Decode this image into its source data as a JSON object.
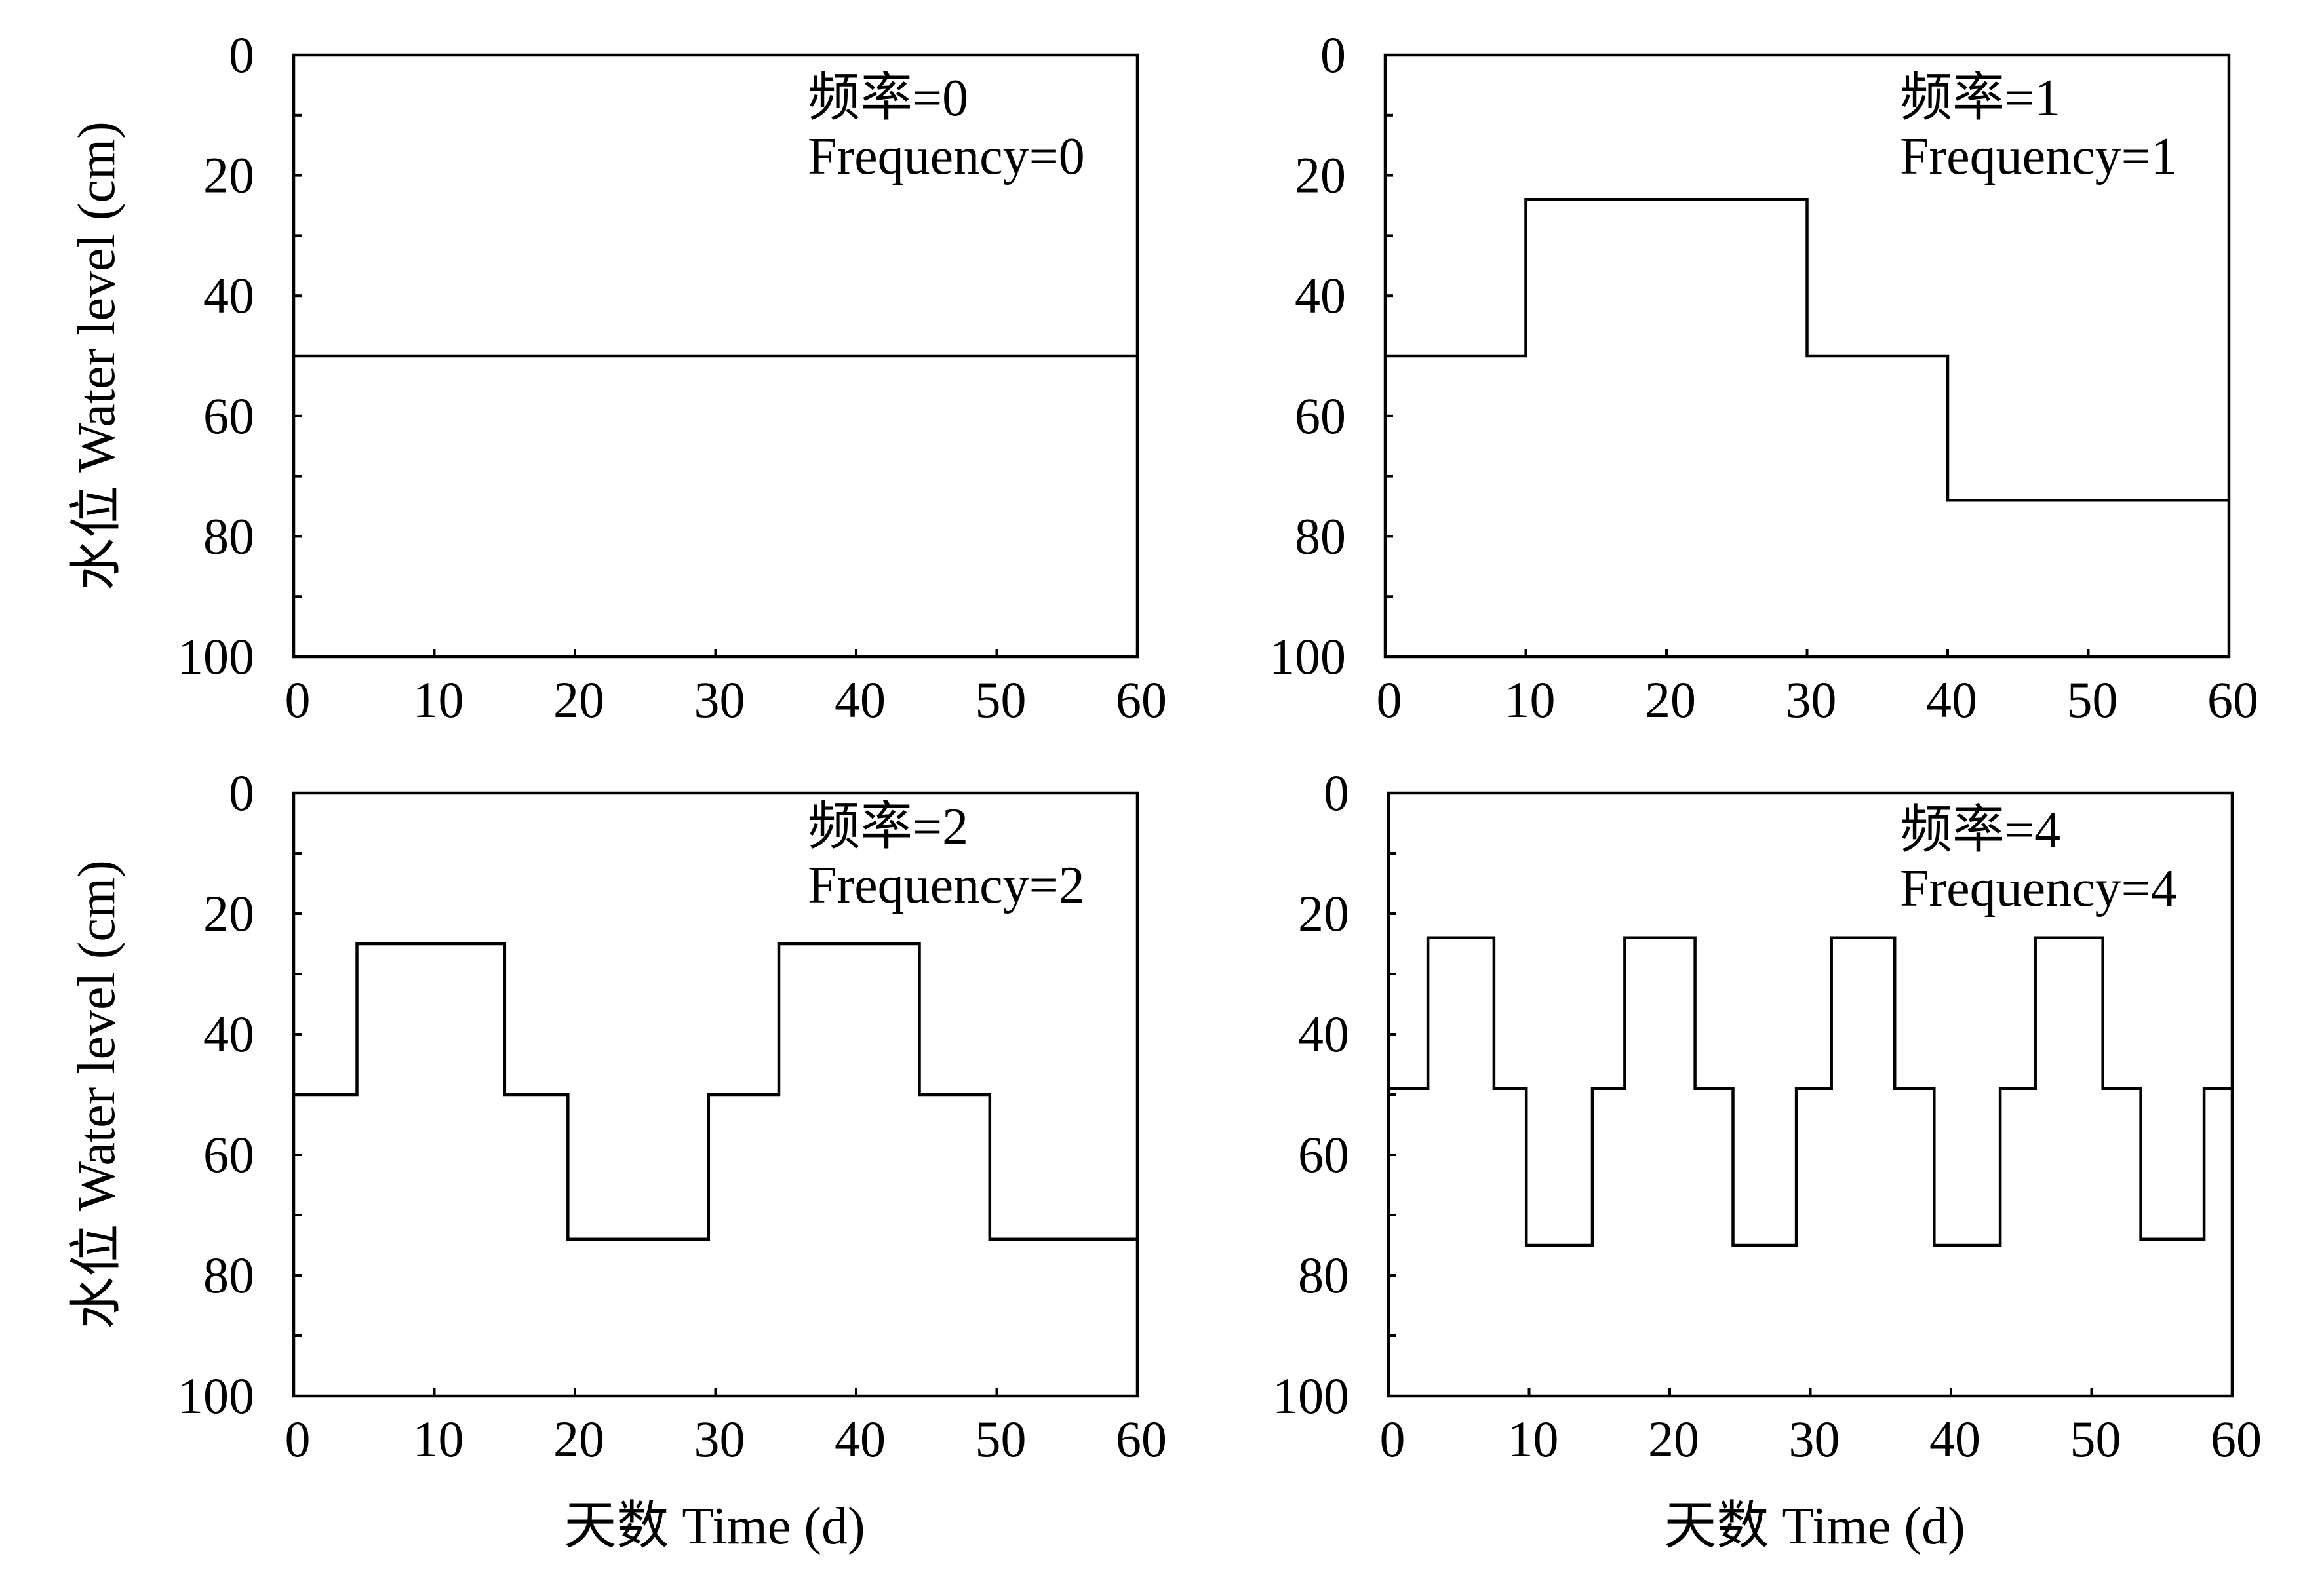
{
  "chart_data": [
    {
      "type": "line",
      "legend": [
        "频率=0",
        "Frequency=0"
      ],
      "legend_placement": "top-right",
      "ylabel": "水位 Water level (cm)",
      "xlabel": "",
      "xlim": [
        0,
        60
      ],
      "ylim": [
        0,
        100
      ],
      "y_inverted": true,
      "x_ticks": [
        "0",
        "10",
        "20",
        "30",
        "40",
        "50",
        "60"
      ],
      "y_ticks": [
        "0",
        "20",
        "40",
        "60",
        "80",
        "100"
      ],
      "grid": false,
      "series": [
        {
          "x": [
            0,
            60
          ],
          "y": [
            50,
            50
          ]
        }
      ]
    },
    {
      "type": "line",
      "legend": [
        "频率=1",
        "Frequency=1"
      ],
      "legend_placement": "top-right",
      "ylabel": "",
      "xlabel": "",
      "xlim": [
        0,
        60
      ],
      "ylim": [
        0,
        100
      ],
      "y_inverted": true,
      "x_ticks": [
        "0",
        "10",
        "20",
        "30",
        "40",
        "50",
        "60"
      ],
      "y_ticks": [
        "0",
        "20",
        "40",
        "60",
        "80",
        "100"
      ],
      "grid": false,
      "series": [
        {
          "x": [
            0,
            10,
            10,
            30,
            30,
            40,
            40,
            60
          ],
          "y": [
            50,
            50,
            24,
            24,
            50,
            50,
            74,
            74
          ]
        }
      ]
    },
    {
      "type": "line",
      "legend": [
        "频率=2",
        "Frequency=2"
      ],
      "legend_placement": "top-right",
      "ylabel": "水位 Water level (cm)",
      "xlabel": "天数 Time (d)",
      "xlim": [
        0,
        60
      ],
      "ylim": [
        0,
        100
      ],
      "y_inverted": true,
      "x_ticks": [
        "0",
        "10",
        "20",
        "30",
        "40",
        "50",
        "60"
      ],
      "y_ticks": [
        "0",
        "20",
        "40",
        "60",
        "80",
        "100"
      ],
      "grid": false,
      "series": [
        {
          "x": [
            0,
            4.5,
            4.5,
            15,
            15,
            19.5,
            19.5,
            29.5,
            29.5,
            34.5,
            34.5,
            44.5,
            44.5,
            49.5,
            49.5,
            60
          ],
          "y": [
            50,
            50,
            25,
            25,
            50,
            50,
            74,
            74,
            50,
            50,
            25,
            25,
            50,
            50,
            74,
            74
          ]
        }
      ]
    },
    {
      "type": "line",
      "legend": [
        "频率=4",
        "Frequency=4"
      ],
      "legend_placement": "top-right",
      "ylabel": "",
      "xlabel": "天数 Time (d)",
      "xlim": [
        0,
        60
      ],
      "ylim": [
        0,
        100
      ],
      "y_inverted": true,
      "x_ticks": [
        "0",
        "10",
        "20",
        "30",
        "40",
        "50",
        "60"
      ],
      "y_ticks": [
        "0",
        "20",
        "40",
        "60",
        "80",
        "100"
      ],
      "grid": false,
      "series": [
        {
          "x": [
            0,
            2.8,
            2.8,
            7.5,
            7.5,
            9.8,
            9.8,
            14.5,
            14.5,
            16.8,
            16.8,
            21.8,
            21.8,
            24.5,
            24.5,
            29,
            29,
            31.5,
            31.5,
            36,
            36,
            38.8,
            38.8,
            43.5,
            43.5,
            46,
            46,
            50.8,
            50.8,
            53.5,
            53.5,
            58,
            58,
            60
          ],
          "y": [
            49,
            49,
            24,
            24,
            49,
            49,
            75,
            75,
            49,
            49,
            24,
            24,
            49,
            49,
            75,
            75,
            49,
            49,
            24,
            24,
            49,
            49,
            75,
            75,
            49,
            49,
            24,
            24,
            49,
            49,
            74,
            74,
            49,
            49
          ]
        }
      ]
    }
  ]
}
